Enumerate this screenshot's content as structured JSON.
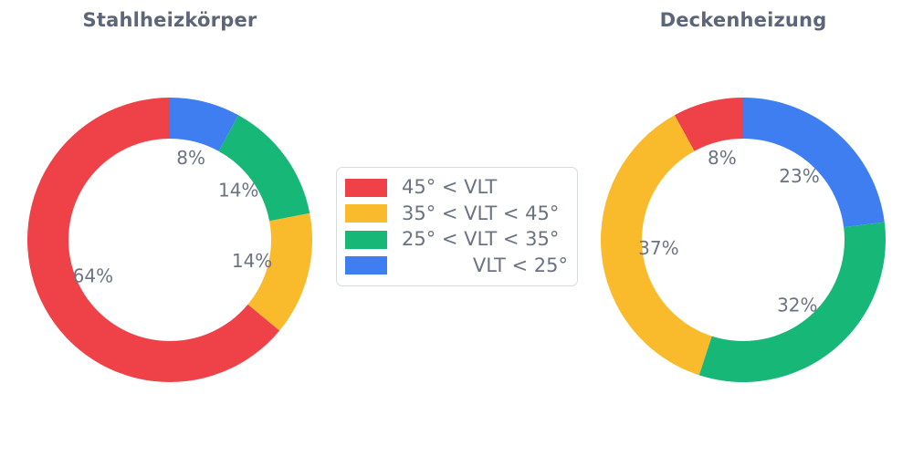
{
  "figure": {
    "background": "#ffffff",
    "label_color": "#6b7383",
    "title_color": "#5c6678",
    "legend_border_color": "#d8dbe0"
  },
  "chart_data": [
    {
      "type": "pie",
      "title": "Stahlheizkörper",
      "hole_ratio": 0.71,
      "direction": "counterclockwise",
      "start_angle_deg": 0,
      "unit": "%",
      "categories": [
        "45° < VLT",
        "35° < VLT < 45°",
        "25° < VLT < 35°",
        "VLT < 25°"
      ],
      "values": [
        64,
        14,
        14,
        8
      ],
      "labels": [
        "64%",
        "14%",
        "14%",
        "8%"
      ],
      "colors": [
        "#ee4248",
        "#f9bb2c",
        "#17b877",
        "#3e7ef0"
      ]
    },
    {
      "type": "pie",
      "title": "Deckenheizung",
      "hole_ratio": 0.71,
      "direction": "counterclockwise",
      "start_angle_deg": 0,
      "unit": "%",
      "categories": [
        "45° < VLT",
        "35° < VLT < 45°",
        "25° < VLT < 35°",
        "VLT < 25°"
      ],
      "values": [
        8,
        37,
        32,
        23
      ],
      "labels": [
        "8%",
        "37%",
        "32%",
        "23%"
      ],
      "colors": [
        "#ee4248",
        "#f9bb2c",
        "#17b877",
        "#3e7ef0"
      ]
    }
  ],
  "legend": {
    "position": "center",
    "items": [
      {
        "label": "45° < VLT",
        "color": "#ee4248",
        "align": "left"
      },
      {
        "label": "35° < VLT < 45°",
        "color": "#f9bb2c",
        "align": "left"
      },
      {
        "label": "25° < VLT < 35°",
        "color": "#17b877",
        "align": "left"
      },
      {
        "label": "VLT < 25°",
        "color": "#3e7ef0",
        "align": "right"
      }
    ]
  }
}
